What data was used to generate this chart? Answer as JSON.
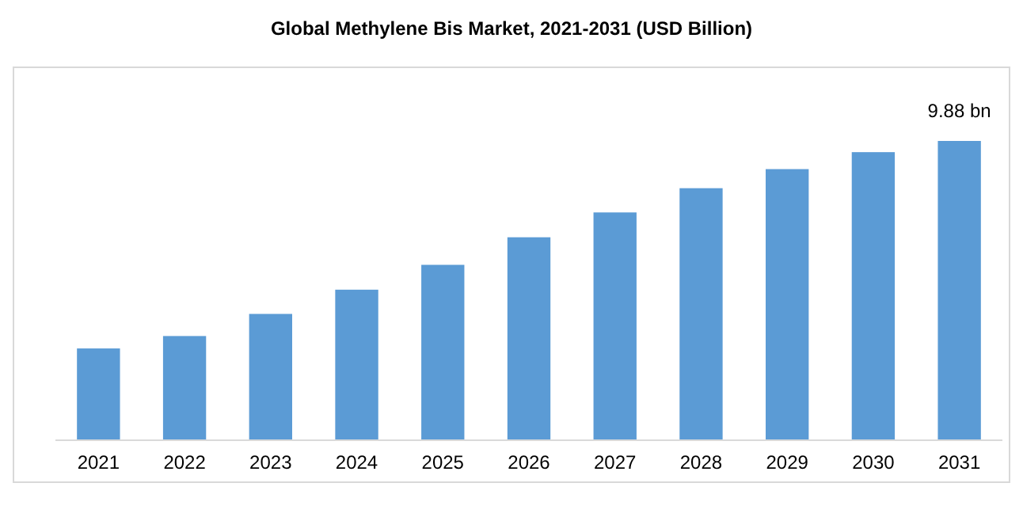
{
  "chart_data": {
    "type": "bar",
    "title": "Global Methylene Bis Market, 2021-2031 (USD Billion)",
    "categories": [
      "2021",
      "2022",
      "2023",
      "2024",
      "2025",
      "2026",
      "2027",
      "2028",
      "2029",
      "2030",
      "2031"
    ],
    "values": [
      3.03,
      3.44,
      4.17,
      4.97,
      5.79,
      6.7,
      7.52,
      8.32,
      8.95,
      9.51,
      9.88
    ],
    "value_labels": [
      null,
      null,
      null,
      null,
      null,
      null,
      null,
      null,
      null,
      null,
      "9.88 bn"
    ],
    "color": "#5b9bd5"
  }
}
